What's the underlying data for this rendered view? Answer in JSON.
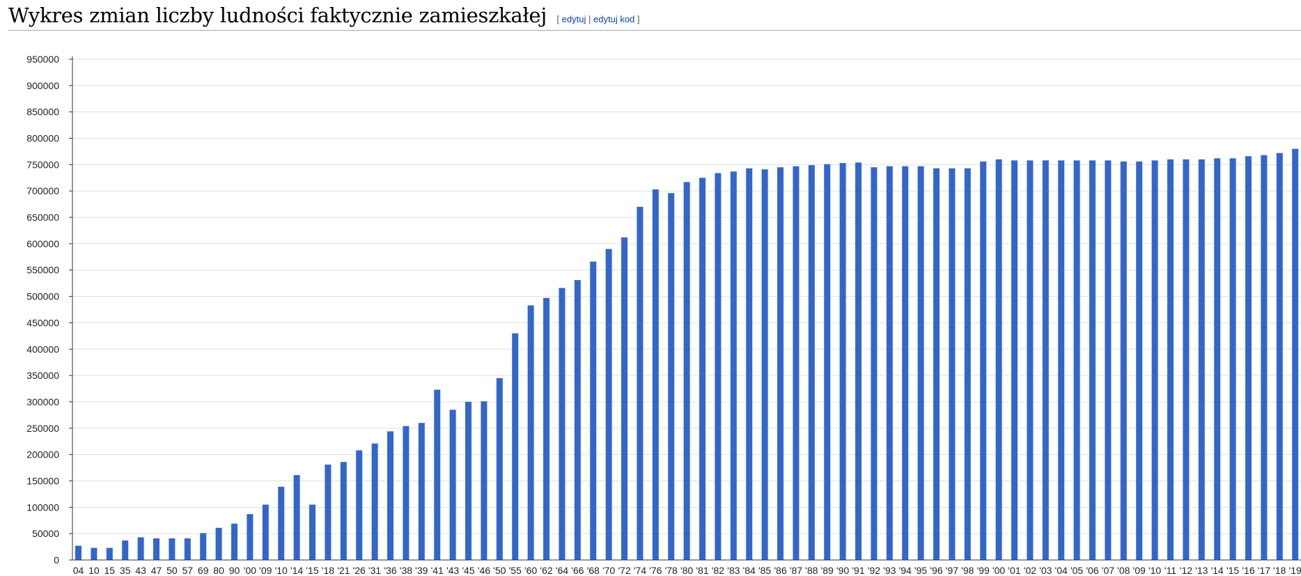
{
  "section": {
    "title": "Wykres zmian liczby ludności faktycznie zamieszkałej",
    "edit_open": "[",
    "edit_label": "edytuj",
    "edit_sep": "|",
    "edit_code_label": "edytuj kod",
    "edit_close": "]"
  },
  "colors": {
    "bar": "#3366cc",
    "grid": "#e0e0e0",
    "axis": "#333333"
  },
  "chart_data": {
    "type": "bar",
    "title": "",
    "xlabel": "",
    "ylabel": "",
    "ylim": [
      0,
      950000
    ],
    "yticks": [
      0,
      50000,
      100000,
      150000,
      200000,
      250000,
      300000,
      350000,
      400000,
      450000,
      500000,
      550000,
      600000,
      650000,
      700000,
      750000,
      800000,
      850000,
      900000,
      950000
    ],
    "grid": true,
    "legend": "none",
    "categories": [
      "04",
      "10",
      "15",
      "35",
      "43",
      "47",
      "50",
      "57",
      "69",
      "80",
      "90",
      "'00",
      "'09",
      "'10",
      "'14",
      "'15",
      "'18",
      "'21",
      "'26",
      "'31",
      "'36",
      "'38",
      "'39",
      "'41",
      "'43",
      "'45",
      "'46",
      "'50",
      "'55",
      "'60",
      "'62",
      "'64",
      "'66",
      "'68",
      "'70",
      "'72",
      "'74",
      "'76",
      "'78",
      "'80",
      "'81",
      "'82",
      "'83",
      "'84",
      "'85",
      "'86",
      "'87",
      "'88",
      "'89",
      "'90",
      "'91",
      "'92",
      "'93",
      "'94",
      "'95",
      "'96",
      "'97",
      "'98",
      "'99",
      "'00",
      "'01",
      "'02",
      "'03",
      "'04",
      "'05",
      "'06",
      "'07",
      "'08",
      "'09",
      "'10",
      "'11",
      "'12",
      "'13",
      "'14",
      "'15",
      "'16",
      "'17",
      "'18",
      "'19"
    ],
    "values": [
      27000,
      23000,
      23000,
      37000,
      43000,
      41000,
      41000,
      41000,
      51000,
      61000,
      69000,
      87000,
      105000,
      139000,
      161000,
      105000,
      181000,
      186000,
      208000,
      221000,
      244000,
      254000,
      260000,
      323000,
      285000,
      300000,
      301000,
      345000,
      430000,
      483000,
      497000,
      516000,
      531000,
      566000,
      590000,
      612000,
      670000,
      703000,
      696000,
      717000,
      725000,
      734000,
      737000,
      743000,
      741000,
      745000,
      747000,
      749000,
      751000,
      753000,
      754000,
      745000,
      747000,
      747000,
      747000,
      743000,
      743000,
      743000,
      756000,
      760000,
      758000,
      758000,
      758000,
      758000,
      758000,
      758000,
      758000,
      756000,
      756000,
      758000,
      760000,
      760000,
      760000,
      762000,
      762000,
      766000,
      768000,
      772000,
      780000
    ]
  }
}
